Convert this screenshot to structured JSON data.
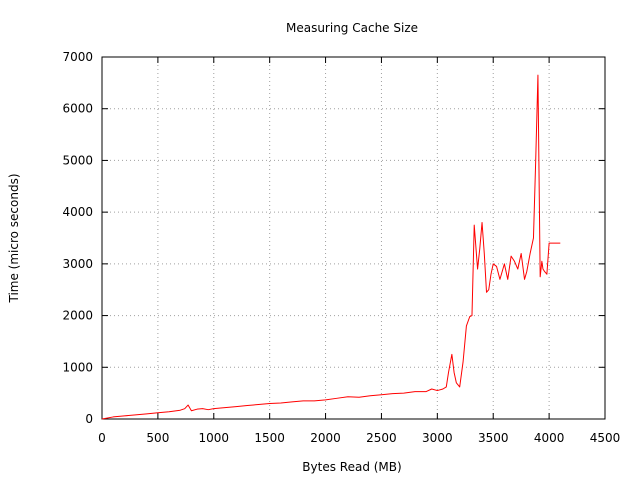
{
  "chart_data": {
    "type": "line",
    "title": "Measuring Cache Size",
    "xlabel": "Bytes Read (MB)",
    "ylabel": "Time (micro seconds)",
    "xlim": [
      0,
      4500
    ],
    "ylim": [
      0,
      7000
    ],
    "xticks": [
      0,
      500,
      1000,
      1500,
      2000,
      2500,
      3000,
      3500,
      4000,
      4500
    ],
    "yticks": [
      0,
      1000,
      2000,
      3000,
      4000,
      5000,
      6000,
      7000
    ],
    "grid": true,
    "series": [
      {
        "color": "#ff0000",
        "x": [
          0,
          100,
          200,
          300,
          400,
          500,
          600,
          700,
          740,
          770,
          800,
          850,
          900,
          950,
          1000,
          1100,
          1200,
          1300,
          1400,
          1500,
          1600,
          1700,
          1800,
          1900,
          2000,
          2100,
          2200,
          2300,
          2400,
          2500,
          2600,
          2700,
          2800,
          2900,
          2950,
          3000,
          3050,
          3080,
          3100,
          3130,
          3150,
          3170,
          3200,
          3230,
          3260,
          3290,
          3310,
          3330,
          3360,
          3380,
          3400,
          3420,
          3440,
          3460,
          3480,
          3500,
          3530,
          3560,
          3600,
          3630,
          3660,
          3690,
          3720,
          3750,
          3780,
          3800,
          3830,
          3860,
          3880,
          3900,
          3920,
          3935,
          3945,
          3960,
          3980,
          4000,
          4030,
          4060,
          4100
        ],
        "y": [
          0,
          40,
          60,
          80,
          100,
          120,
          140,
          170,
          200,
          270,
          160,
          190,
          200,
          180,
          200,
          220,
          240,
          260,
          280,
          300,
          310,
          330,
          350,
          350,
          370,
          400,
          430,
          420,
          450,
          470,
          490,
          500,
          530,
          530,
          580,
          550,
          580,
          620,
          900,
          1250,
          900,
          700,
          620,
          1100,
          1800,
          1980,
          2000,
          3750,
          2900,
          3300,
          3800,
          3200,
          2450,
          2500,
          2800,
          3000,
          2950,
          2700,
          3000,
          2700,
          3150,
          3050,
          2900,
          3200,
          2700,
          2850,
          3200,
          3500,
          5000,
          6650,
          2750,
          3050,
          2900,
          2850,
          2800,
          3400,
          3400,
          3400,
          3400
        ]
      }
    ]
  }
}
